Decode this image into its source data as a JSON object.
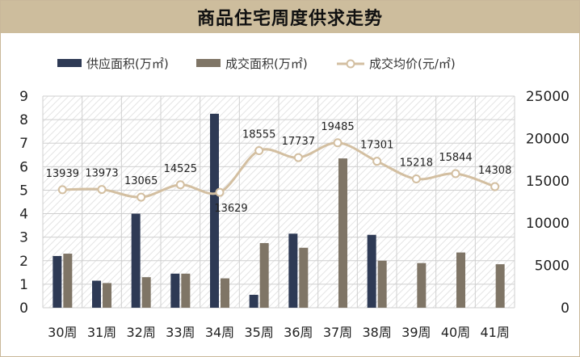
{
  "title": "商品住宅周度供求走势",
  "colors": {
    "supply": "#2e3a55",
    "deal": "#7f7566",
    "price": "#d3bfa1",
    "title_bg": "#cdbd9d"
  },
  "chart_data": {
    "type": "bar",
    "title": "商品住宅周度供求走势",
    "categories": [
      "30周",
      "31周",
      "32周",
      "33周",
      "34周",
      "35周",
      "36周",
      "37周",
      "38周",
      "39周",
      "40周",
      "41周"
    ],
    "series": [
      {
        "name": "供应面积(万㎡)",
        "type": "bar",
        "axis": "left",
        "values": [
          2.2,
          1.15,
          4.0,
          1.45,
          8.25,
          0.55,
          3.15,
          0,
          3.1,
          0,
          0,
          0
        ]
      },
      {
        "name": "成交面积(万㎡)",
        "type": "bar",
        "axis": "left",
        "values": [
          2.3,
          1.05,
          1.3,
          1.45,
          1.25,
          2.75,
          2.55,
          6.35,
          2.0,
          1.9,
          2.35,
          1.85
        ]
      },
      {
        "name": "成交均价(元/㎡)",
        "type": "line",
        "axis": "right",
        "values": [
          13939,
          13973,
          13065,
          14525,
          13629,
          18555,
          17737,
          19485,
          17301,
          15218,
          15844,
          14308
        ],
        "labels": [
          "13939",
          "13973",
          "13065",
          "14525",
          "13629",
          "18555",
          "17737",
          "19485",
          "17301",
          "15218",
          "15844",
          "14308"
        ]
      }
    ],
    "y_left": {
      "min": 0,
      "max": 9,
      "ticks": [
        "0",
        "1",
        "2",
        "3",
        "4",
        "5",
        "6",
        "7",
        "8",
        "9"
      ]
    },
    "y_right": {
      "min": 0,
      "max": 25000,
      "ticks": [
        "0",
        "5000",
        "10000",
        "15000",
        "20000",
        "25000"
      ]
    },
    "legend_position": "top",
    "grid": true
  }
}
